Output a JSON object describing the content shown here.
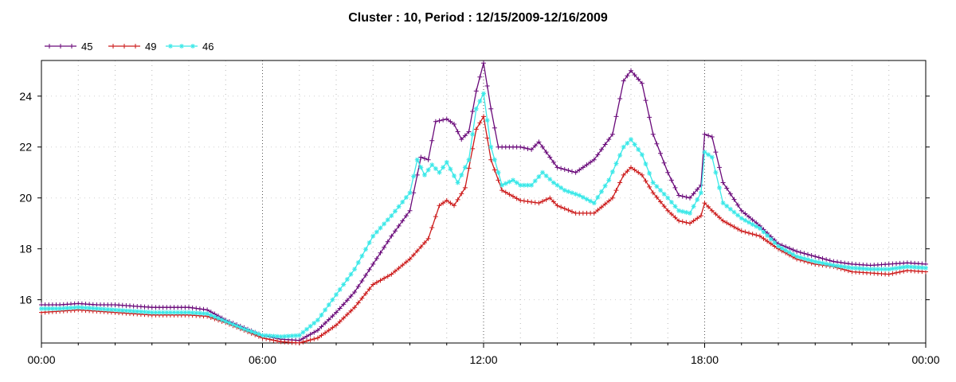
{
  "chart_data": {
    "type": "line",
    "title": "Cluster : 10, Period : 12/15/2009-12/16/2009",
    "xlabel": "",
    "ylabel": "",
    "x_ticks": [
      "00:00",
      "06:00",
      "12:00",
      "18:00",
      "00:00"
    ],
    "y_ticks": [
      16,
      18,
      20,
      22,
      24
    ],
    "xlim_hours": [
      0,
      24
    ],
    "ylim": [
      14.3,
      25.4
    ],
    "grid": true,
    "legend_position": "top-left",
    "series": [
      {
        "name": "45",
        "color": "#6a0a7a",
        "marker": "plus",
        "points": [
          [
            0,
            15.8
          ],
          [
            0.5,
            15.8
          ],
          [
            1,
            15.85
          ],
          [
            1.5,
            15.8
          ],
          [
            2,
            15.8
          ],
          [
            2.5,
            15.75
          ],
          [
            3,
            15.7
          ],
          [
            3.5,
            15.7
          ],
          [
            4,
            15.7
          ],
          [
            4.5,
            15.6
          ],
          [
            5,
            15.2
          ],
          [
            5.5,
            14.9
          ],
          [
            6,
            14.6
          ],
          [
            6.5,
            14.45
          ],
          [
            7,
            14.4
          ],
          [
            7.5,
            14.8
          ],
          [
            8,
            15.5
          ],
          [
            8.5,
            16.3
          ],
          [
            9,
            17.4
          ],
          [
            9.5,
            18.5
          ],
          [
            10,
            19.5
          ],
          [
            10.3,
            21.6
          ],
          [
            10.5,
            21.5
          ],
          [
            10.7,
            23.0
          ],
          [
            11,
            23.1
          ],
          [
            11.2,
            22.9
          ],
          [
            11.4,
            22.3
          ],
          [
            11.6,
            22.6
          ],
          [
            11.8,
            24.2
          ],
          [
            12,
            25.3
          ],
          [
            12.2,
            23.5
          ],
          [
            12.4,
            22.0
          ],
          [
            12.7,
            22.0
          ],
          [
            13,
            22.0
          ],
          [
            13.3,
            21.9
          ],
          [
            13.5,
            22.2
          ],
          [
            13.8,
            21.6
          ],
          [
            14,
            21.2
          ],
          [
            14.5,
            21.0
          ],
          [
            15,
            21.5
          ],
          [
            15.5,
            22.5
          ],
          [
            15.8,
            24.6
          ],
          [
            16,
            25.0
          ],
          [
            16.3,
            24.5
          ],
          [
            16.6,
            22.5
          ],
          [
            17,
            21.0
          ],
          [
            17.3,
            20.1
          ],
          [
            17.6,
            20.0
          ],
          [
            17.9,
            20.5
          ],
          [
            18,
            22.5
          ],
          [
            18.2,
            22.4
          ],
          [
            18.5,
            20.6
          ],
          [
            19,
            19.5
          ],
          [
            19.5,
            18.9
          ],
          [
            20,
            18.2
          ],
          [
            20.5,
            17.9
          ],
          [
            21,
            17.7
          ],
          [
            21.5,
            17.5
          ],
          [
            22,
            17.4
          ],
          [
            22.5,
            17.35
          ],
          [
            23,
            17.4
          ],
          [
            23.5,
            17.45
          ],
          [
            24,
            17.4
          ]
        ]
      },
      {
        "name": "49",
        "color": "#cc1a1a",
        "marker": "plus",
        "points": [
          [
            0,
            15.5
          ],
          [
            0.5,
            15.55
          ],
          [
            1,
            15.6
          ],
          [
            1.5,
            15.55
          ],
          [
            2,
            15.5
          ],
          [
            2.5,
            15.45
          ],
          [
            3,
            15.4
          ],
          [
            3.5,
            15.4
          ],
          [
            4,
            15.4
          ],
          [
            4.5,
            15.35
          ],
          [
            5,
            15.1
          ],
          [
            5.5,
            14.8
          ],
          [
            6,
            14.5
          ],
          [
            6.5,
            14.35
          ],
          [
            7,
            14.3
          ],
          [
            7.5,
            14.5
          ],
          [
            8,
            15.0
          ],
          [
            8.5,
            15.7
          ],
          [
            9,
            16.6
          ],
          [
            9.5,
            17.0
          ],
          [
            10,
            17.6
          ],
          [
            10.5,
            18.4
          ],
          [
            10.8,
            19.7
          ],
          [
            11,
            19.9
          ],
          [
            11.2,
            19.7
          ],
          [
            11.5,
            20.4
          ],
          [
            11.8,
            22.7
          ],
          [
            12,
            23.2
          ],
          [
            12.2,
            21.5
          ],
          [
            12.5,
            20.3
          ],
          [
            13,
            19.9
          ],
          [
            13.5,
            19.8
          ],
          [
            13.8,
            20.0
          ],
          [
            14,
            19.7
          ],
          [
            14.5,
            19.4
          ],
          [
            15,
            19.4
          ],
          [
            15.5,
            20.0
          ],
          [
            15.8,
            20.9
          ],
          [
            16,
            21.2
          ],
          [
            16.3,
            20.9
          ],
          [
            16.6,
            20.2
          ],
          [
            17,
            19.5
          ],
          [
            17.3,
            19.1
          ],
          [
            17.6,
            19.0
          ],
          [
            17.9,
            19.3
          ],
          [
            18,
            19.8
          ],
          [
            18.2,
            19.5
          ],
          [
            18.5,
            19.1
          ],
          [
            19,
            18.7
          ],
          [
            19.5,
            18.5
          ],
          [
            20,
            18.0
          ],
          [
            20.5,
            17.6
          ],
          [
            21,
            17.4
          ],
          [
            21.5,
            17.3
          ],
          [
            22,
            17.1
          ],
          [
            22.5,
            17.05
          ],
          [
            23,
            17.0
          ],
          [
            23.5,
            17.15
          ],
          [
            24,
            17.1
          ]
        ]
      },
      {
        "name": "46",
        "color": "#3ae8e8",
        "marker": "star",
        "points": [
          [
            0,
            15.65
          ],
          [
            0.5,
            15.65
          ],
          [
            1,
            15.7
          ],
          [
            1.5,
            15.65
          ],
          [
            2,
            15.6
          ],
          [
            2.5,
            15.55
          ],
          [
            3,
            15.5
          ],
          [
            3.5,
            15.5
          ],
          [
            4,
            15.5
          ],
          [
            4.5,
            15.45
          ],
          [
            5,
            15.15
          ],
          [
            5.5,
            14.85
          ],
          [
            6,
            14.6
          ],
          [
            6.5,
            14.55
          ],
          [
            7,
            14.6
          ],
          [
            7.5,
            15.2
          ],
          [
            8,
            16.2
          ],
          [
            8.5,
            17.2
          ],
          [
            9,
            18.5
          ],
          [
            9.5,
            19.3
          ],
          [
            10,
            20.2
          ],
          [
            10.2,
            21.5
          ],
          [
            10.4,
            20.9
          ],
          [
            10.6,
            21.3
          ],
          [
            10.8,
            21.0
          ],
          [
            11,
            21.4
          ],
          [
            11.3,
            20.6
          ],
          [
            11.6,
            21.5
          ],
          [
            11.8,
            23.5
          ],
          [
            12,
            24.1
          ],
          [
            12.2,
            22.0
          ],
          [
            12.5,
            20.5
          ],
          [
            12.8,
            20.7
          ],
          [
            13,
            20.5
          ],
          [
            13.3,
            20.5
          ],
          [
            13.6,
            21.0
          ],
          [
            13.9,
            20.6
          ],
          [
            14.2,
            20.3
          ],
          [
            14.6,
            20.1
          ],
          [
            15,
            19.8
          ],
          [
            15.4,
            20.7
          ],
          [
            15.8,
            22.0
          ],
          [
            16,
            22.3
          ],
          [
            16.3,
            21.7
          ],
          [
            16.6,
            20.6
          ],
          [
            17,
            20.0
          ],
          [
            17.3,
            19.5
          ],
          [
            17.6,
            19.4
          ],
          [
            17.9,
            20.2
          ],
          [
            18,
            21.8
          ],
          [
            18.2,
            21.6
          ],
          [
            18.5,
            19.8
          ],
          [
            19,
            19.2
          ],
          [
            19.5,
            18.8
          ],
          [
            20,
            18.1
          ],
          [
            20.5,
            17.7
          ],
          [
            21,
            17.5
          ],
          [
            21.5,
            17.35
          ],
          [
            22,
            17.25
          ],
          [
            22.5,
            17.2
          ],
          [
            23,
            17.2
          ],
          [
            23.5,
            17.3
          ],
          [
            24,
            17.25
          ]
        ]
      }
    ]
  }
}
